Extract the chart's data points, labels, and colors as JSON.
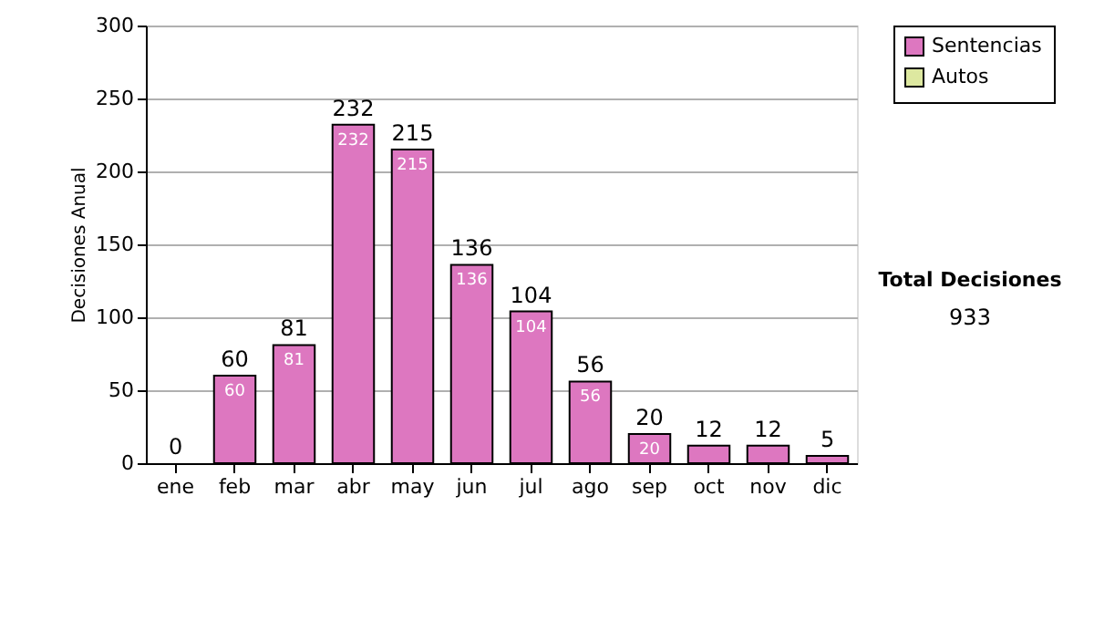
{
  "chart_data": {
    "type": "bar",
    "ylabel": "Decisiones Anual",
    "categories": [
      "ene",
      "feb",
      "mar",
      "abr",
      "may",
      "jun",
      "jul",
      "ago",
      "sep",
      "oct",
      "nov",
      "dic"
    ],
    "series": [
      {
        "name": "Sentencias",
        "color": "#dd77c0",
        "values": [
          0,
          60,
          81,
          232,
          215,
          136,
          104,
          56,
          20,
          12,
          12,
          5
        ],
        "value_labels": [
          null,
          "60",
          "81",
          "232",
          "215",
          "136",
          "104",
          "56",
          "20",
          null,
          null,
          null
        ]
      },
      {
        "name": "Autos",
        "color": "#dde8a0",
        "values": [
          0,
          0,
          0,
          0,
          0,
          0,
          0,
          0,
          0,
          0,
          0,
          0
        ]
      }
    ],
    "totals": [
      "0",
      "60",
      "81",
      "232",
      "215",
      "136",
      "104",
      "56",
      "20",
      "12",
      "12",
      "5"
    ],
    "ylim": [
      0,
      300
    ],
    "yticks": [
      0,
      50,
      100,
      150,
      200,
      250,
      300
    ],
    "grid": "y",
    "legend": "right",
    "annotations": [
      "Total Decisiones",
      "933"
    ]
  }
}
